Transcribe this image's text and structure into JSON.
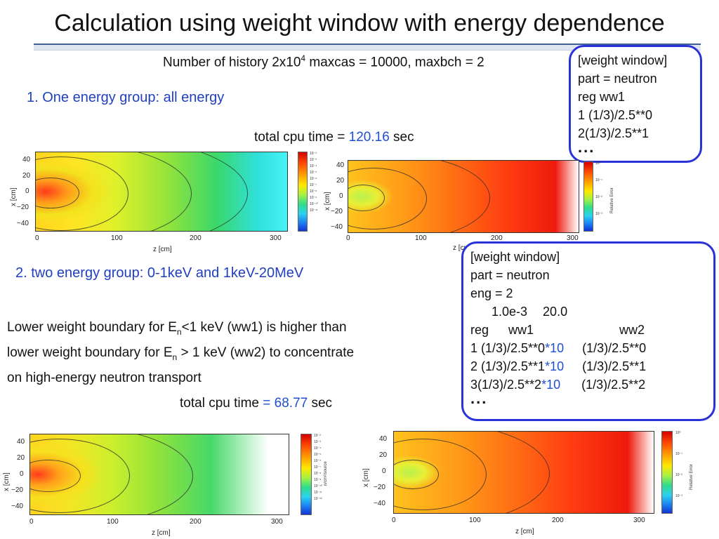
{
  "title": "Calculation using weight window with energy dependence",
  "history_line": {
    "prefix": "Number of history  2x10",
    "exp": "4",
    "suffix": "  maxcas = 10000, maxbch = 2"
  },
  "section1": {
    "heading": "1. One energy group: all energy",
    "cpu_prefix": "total cpu time = ",
    "cpu_value": "120.16",
    "cpu_suffix": " sec"
  },
  "box1": {
    "lines": [
      "[weight window]",
      "part = neutron",
      "reg ww1",
      "1   (1/3)/2.5**0",
      "2(1/3)/2.5**1"
    ],
    "dots": "..."
  },
  "section2": {
    "heading": "2. two energy group: 0-1keV  and 1keV-20MeV",
    "desc_line1_a": "Lower weight boundary  for E",
    "desc_line1_sub": "n",
    "desc_line1_b": "<1 keV (ww1) is higher than",
    "desc_line2_a": "lower weight boundary for E",
    "desc_line2_sub": "n",
    "desc_line2_b": " > 1 keV (ww2) to concentrate",
    "desc_line3": "on high-energy neutron transport",
    "cpu_prefix": "total cpu time ",
    "cpu_value": "= 68.77",
    "cpu_suffix": " sec"
  },
  "box2": {
    "l1": "[weight window]",
    "l2": "part = neutron",
    "l3": "eng = 2",
    "l4a": "1.0e-3",
    "l4b": "20.0",
    "l5a": "reg",
    "l5b": "ww1",
    "l5c": "ww2",
    "r1a": "1   (1/3)/2.5**0",
    "r1b": "*10",
    "r1c": "(1/3)/2.5**0",
    "r2a": "2   (1/3)/2.5**1",
    "r2b": "*10",
    "r2c": "(1/3)/2.5**1",
    "r3a": "3(1/3)/2.5**2",
    "r3b": "*10",
    "r3c": "(1/3)/2.5**2",
    "dots": "..."
  },
  "plots": {
    "xlabel": "z [cm]",
    "ylabel": "x [cm]",
    "xticks": [
      "0",
      "100",
      "200",
      "300"
    ],
    "yticks": [
      "40",
      "20",
      "0",
      "−20",
      "−40"
    ],
    "cb_label_flux": "n/cm²/source",
    "cb_label_err": "Relative Error",
    "cb_ticks_flux": [
      "10⁻²",
      "10⁻³",
      "10⁻⁴",
      "10⁻⁵",
      "10⁻⁶",
      "10⁻⁷",
      "10⁻⁸",
      "10⁻⁹",
      "10⁻¹⁰",
      "10⁻¹¹",
      "10⁻¹²",
      "10⁻¹³"
    ],
    "cb_ticks_err": [
      "10⁰",
      "10⁻¹",
      "10⁻²",
      "10⁻³"
    ]
  },
  "colors": {
    "title_rule": "#3f5f92",
    "box_border": "#2a33d8",
    "heading_blue": "#1f3fbf",
    "value_blue": "#1f4fd0"
  }
}
